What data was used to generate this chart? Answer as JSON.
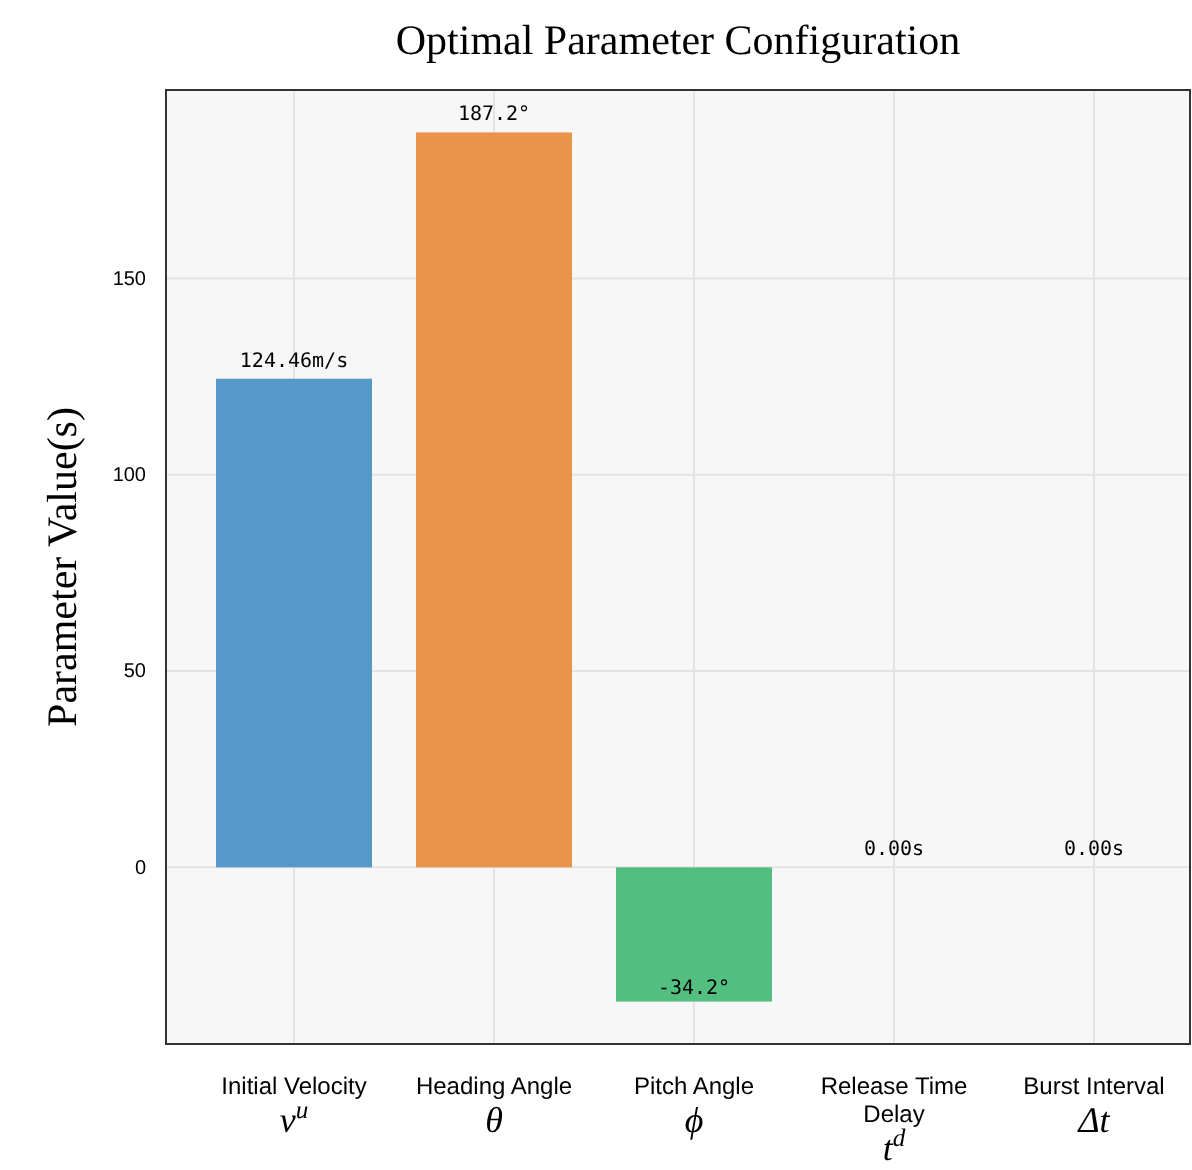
{
  "chart_data": {
    "type": "bar",
    "title": "Optimal Parameter Configuration",
    "ylabel": "Parameter Value(s)",
    "categories": [
      "Initial Velocity\nv$^{u}$",
      "Heading Angle\nθ",
      "Pitch Angle\nϕ",
      "Release Time\nDelay\nt$^{d}$",
      "Burst Interval\nΔt"
    ],
    "values": [
      124.46,
      187.2,
      -34.2,
      0,
      0
    ],
    "colors": [
      "#5499c7",
      "#e8944a",
      "#52be80",
      "#9b59b6",
      "#e74c3c"
    ],
    "value_labels": [
      "124.46m/s",
      "187.2°",
      "-34.2°",
      "0.00s",
      "0.00s"
    ],
    "ylim": [
      -45,
      198
    ],
    "yticks": [
      0,
      50,
      100,
      150
    ],
    "grid": true
  }
}
